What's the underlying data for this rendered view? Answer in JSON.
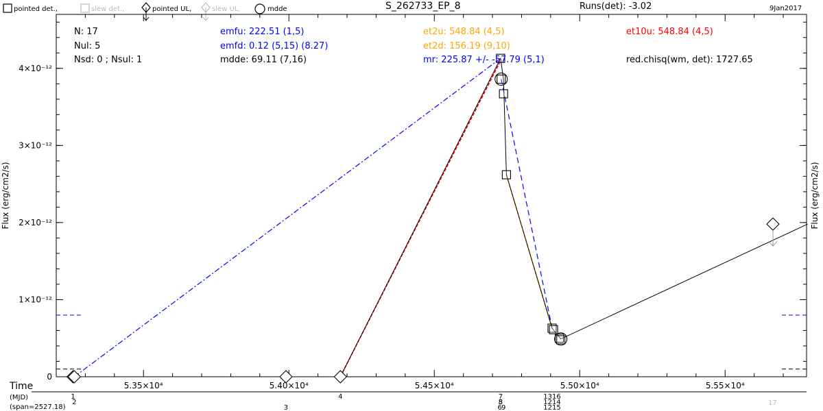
{
  "title": "S_262733_EP_8",
  "runs_label": "Runs(det): -3.02",
  "date_label": "9Jan2017",
  "legend": [
    {
      "symbol": "square",
      "label": "pointed det.,",
      "color": "#000000"
    },
    {
      "symbol": "square",
      "label": "slew det.,",
      "color": "#bbbbbb"
    },
    {
      "symbol": "diamond-ul",
      "label": "pointed UL,",
      "color": "#000000"
    },
    {
      "symbol": "diamond-ul",
      "label": "slew UL,",
      "color": "#bbbbbb"
    },
    {
      "symbol": "circle",
      "label": "mdde",
      "color": "#000000"
    }
  ],
  "stats": {
    "n": "N: 17",
    "nul": "Nul: 5",
    "nsd": "Nsd: 0 ; Nsul: 1",
    "emfu": "emfu: 222.51 (1,5)",
    "emfd": "emfd: 0.12 (5,15) (8.27)",
    "mdde": "mdde: 69.11 (7,16)",
    "et2u": "et2u: 548.84 (4,5)",
    "et2d": "et2d: 156.19 (9,10)",
    "mr": "mr: 225.87 +/- -57.79 (5,1)",
    "et10u": "et10u: 548.84 (4,5)",
    "redchisq": "red.chisq(wm, det): 1727.65"
  },
  "colors": {
    "blue": "#0000ff",
    "orange": "#ffa500",
    "red": "#ff0000",
    "black": "#000000",
    "grey": "#bbbbbb"
  },
  "time_label": "Time",
  "mjd_label": "(MJD)",
  "span_label": "(span=2527.18)",
  "extra_count": "17",
  "chart_data": {
    "type": "scatter",
    "ylabel_left": "Flux (erg/cm2/s)",
    "ylabel_right": "Flux (erg/cm2/s)",
    "xlim": [
      53200,
      55780
    ],
    "ylim": [
      0,
      4.7e-12
    ],
    "xticks": [
      53500,
      54000,
      54500,
      55000,
      55500
    ],
    "xtick_labels": [
      "5.35×10⁴",
      "5.40×10⁴",
      "5.45×10⁴",
      "5.50×10⁴",
      "5.55×10⁴"
    ],
    "yticks": [
      0,
      1e-12,
      2e-12,
      3e-12,
      4e-12
    ],
    "ytick_labels": [
      "0",
      "1×10⁻¹²",
      "2×10⁻¹²",
      "3×10⁻¹²",
      "4×10⁻¹²"
    ],
    "detections": [
      {
        "x": 54728,
        "y": 4.13e-12
      },
      {
        "x": 54730,
        "y": 3.86e-12
      },
      {
        "x": 54738,
        "y": 3.67e-12
      },
      {
        "x": 54748,
        "y": 2.62e-12
      },
      {
        "x": 54905,
        "y": 6.3e-13
      },
      {
        "x": 54910,
        "y": 6.1e-13
      },
      {
        "x": 54930,
        "y": 5e-13
      },
      {
        "x": 54935,
        "y": 4.8e-13
      }
    ],
    "upper_limits": [
      {
        "x": 53258,
        "y": 0.0,
        "color": "#000000"
      },
      {
        "x": 53262,
        "y": 0.0,
        "color": "#000000"
      },
      {
        "x": 53990,
        "y": 0.0,
        "color": "#000000"
      },
      {
        "x": 54177,
        "y": 0.0,
        "color": "#000000"
      },
      {
        "x": 55784,
        "y": 1.98e-12,
        "color": "#000000"
      }
    ],
    "mdde_points": [
      {
        "x": 54730,
        "y": 3.86e-12
      },
      {
        "x": 54935,
        "y": 4.9e-13
      }
    ],
    "lightcurve": [
      [
        53258,
        0
      ],
      [
        53990,
        0
      ],
      [
        54177,
        0
      ],
      [
        54728,
        4.13e-12
      ],
      [
        54738,
        3.85e-12
      ],
      [
        54748,
        2.62e-12
      ],
      [
        54905,
        6.3e-13
      ],
      [
        54935,
        4.9e-13
      ],
      [
        55784,
        1.98e-12
      ]
    ],
    "emf_rise": [
      [
        53262,
        0
      ],
      [
        54728,
        4.13e-12
      ]
    ],
    "emf_fall": [
      [
        54730,
        3.86e-12
      ],
      [
        54905,
        6.3e-13
      ],
      [
        54935,
        4.9e-13
      ]
    ],
    "et_red": [
      [
        54177,
        0
      ],
      [
        54728,
        4.1e-12
      ]
    ],
    "et_orange": [
      [
        54748,
        2.62e-12
      ],
      [
        54905,
        6.3e-13
      ]
    ],
    "mean_level": 8e-13,
    "low_level": 1e-13,
    "index_labels": [
      {
        "x": 53258,
        "row": 0,
        "text": "1"
      },
      {
        "x": 53262,
        "row": 1,
        "text": "2"
      },
      {
        "x": 53990,
        "row": 2,
        "text": "3"
      },
      {
        "x": 54177,
        "row": 0,
        "text": "4"
      },
      {
        "x": 54728,
        "row": 0,
        "text": "7"
      },
      {
        "x": 54728,
        "row": 1,
        "text": "5"
      },
      {
        "x": 54728,
        "row": 1,
        "text": "8"
      },
      {
        "x": 54725,
        "row": 2,
        "text": "6"
      },
      {
        "x": 54738,
        "row": 2,
        "text": "9"
      },
      {
        "x": 54905,
        "row": 0,
        "text": "1316"
      },
      {
        "x": 54905,
        "row": 1,
        "text": "1214"
      },
      {
        "x": 54905,
        "row": 2,
        "text": "1215"
      }
    ]
  }
}
